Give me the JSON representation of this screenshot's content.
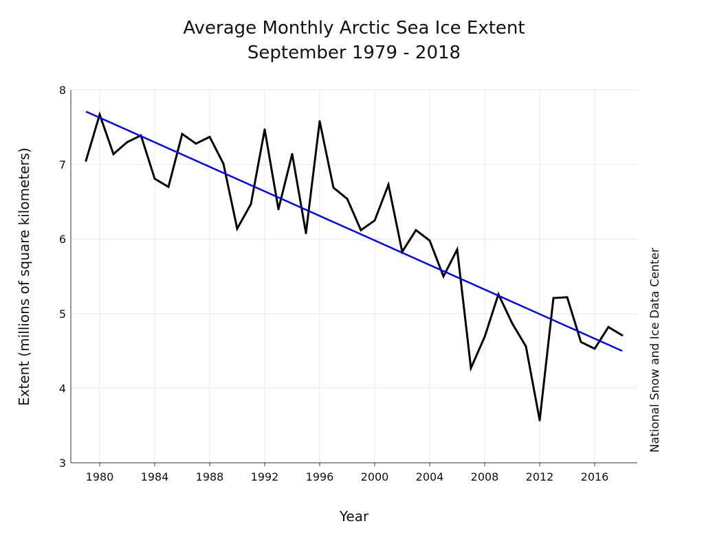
{
  "chart_data": {
    "type": "line",
    "title": "Average Monthly Arctic Sea Ice Extent",
    "subtitle": "September 1979 - 2018",
    "xlabel": "Year",
    "ylabel": "Extent (millions of square kilometers)",
    "credit": "National Snow and Ice Data Center",
    "xlim": [
      1979,
      2018
    ],
    "ylim": [
      3,
      8
    ],
    "xticks": [
      1980,
      1984,
      1988,
      1992,
      1996,
      2000,
      2004,
      2008,
      2012,
      2016
    ],
    "yticks": [
      3,
      4,
      5,
      6,
      7,
      8
    ],
    "grid": true,
    "x": [
      1979,
      1980,
      1981,
      1982,
      1983,
      1984,
      1985,
      1986,
      1987,
      1988,
      1989,
      1990,
      1991,
      1992,
      1993,
      1994,
      1995,
      1996,
      1997,
      1998,
      1999,
      2000,
      2001,
      2002,
      2003,
      2004,
      2005,
      2006,
      2007,
      2008,
      2009,
      2010,
      2011,
      2012,
      2013,
      2014,
      2015,
      2016,
      2017,
      2018
    ],
    "series": [
      {
        "color": "#000000",
        "values": [
          7.05,
          7.67,
          7.14,
          7.3,
          7.39,
          6.81,
          6.7,
          7.41,
          7.28,
          7.37,
          7.01,
          6.14,
          6.47,
          7.47,
          6.4,
          7.14,
          6.08,
          7.58,
          6.69,
          6.54,
          6.12,
          6.25,
          6.73,
          5.83,
          6.12,
          5.98,
          5.5,
          5.86,
          4.27,
          4.69,
          5.26,
          4.87,
          4.56,
          3.57,
          5.21,
          5.22,
          4.62,
          4.53,
          4.82,
          4.71
        ]
      },
      {
        "color": "#0000ff",
        "trend": true,
        "x": [
          1979,
          2018
        ],
        "values": [
          7.71,
          4.5
        ]
      }
    ]
  }
}
